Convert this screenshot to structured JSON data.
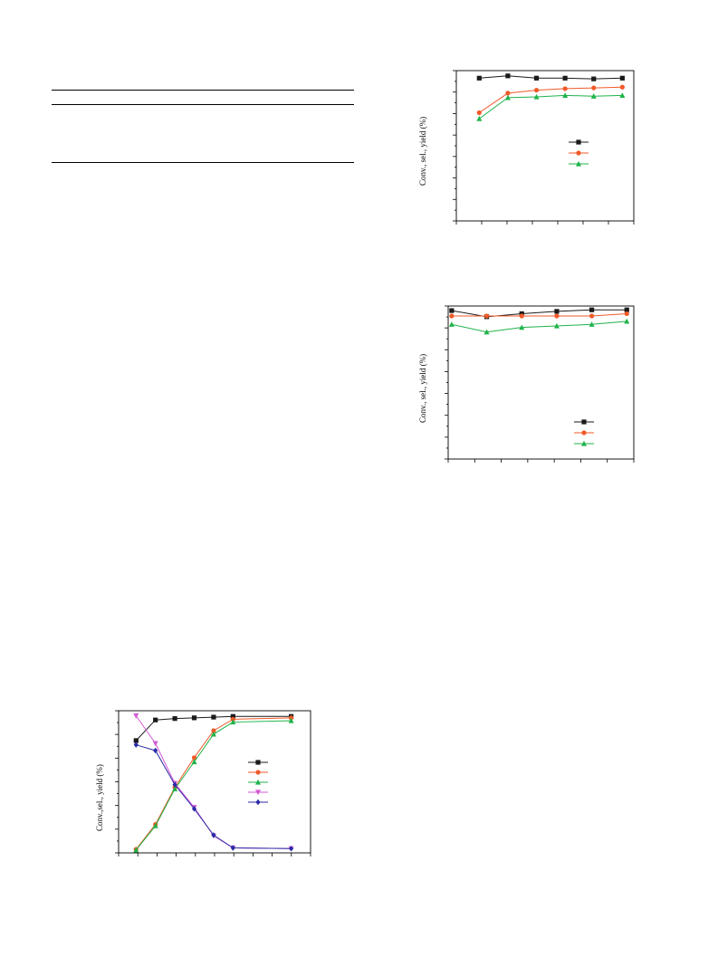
{
  "colors": {
    "black": "#1a1a1a",
    "red": "#f05a28",
    "green": "#1fb34a",
    "magenta": "#d458d4",
    "blue": "#2b2ba6"
  },
  "chart_data": [
    {
      "type": "line",
      "id": "top-right",
      "ylabel": "Conv., sel., yield (%)",
      "x": [
        1,
        2,
        3,
        4,
        5,
        6
      ],
      "xlim": [
        0.2,
        6.4
      ],
      "ylim": [
        0,
        100
      ],
      "series": [
        {
          "color": "black",
          "marker": "square",
          "values": [
            95,
            96.5,
            95,
            95,
            94.5,
            95
          ]
        },
        {
          "color": "red",
          "marker": "circle",
          "values": [
            72,
            85,
            87,
            88,
            88.5,
            89
          ]
        },
        {
          "color": "green",
          "marker": "triangle-up",
          "values": [
            68,
            82,
            82.5,
            83.5,
            83,
            83.5
          ]
        }
      ],
      "legend": "right"
    },
    {
      "type": "line",
      "id": "mid-right",
      "ylabel": "Conv., sel., yield (%)",
      "x": [
        1,
        2,
        3,
        4,
        5,
        6
      ],
      "xlim": [
        0.9,
        6.2
      ],
      "ylim": [
        0,
        100
      ],
      "series": [
        {
          "color": "black",
          "marker": "square",
          "values": [
            97,
            93,
            95,
            96.5,
            97.5,
            97.5
          ]
        },
        {
          "color": "red",
          "marker": "circle",
          "values": [
            93.5,
            93.5,
            93.5,
            93.5,
            93.5,
            95
          ]
        },
        {
          "color": "green",
          "marker": "triangle-up",
          "values": [
            88,
            83,
            86,
            87,
            88,
            90
          ]
        }
      ],
      "legend": "bottom-right"
    },
    {
      "type": "line",
      "id": "bottom-left",
      "ylabel": "Conv.,sel., yield (%)",
      "x": [
        1,
        2,
        3,
        4,
        5,
        6,
        9
      ],
      "xlim": [
        0.1,
        10
      ],
      "ylim": [
        0,
        100
      ],
      "series": [
        {
          "color": "black",
          "marker": "square",
          "values": [
            79,
            93.5,
            94.5,
            95,
            95.5,
            96,
            96
          ]
        },
        {
          "color": "red",
          "marker": "circle",
          "values": [
            2.5,
            20,
            46,
            67,
            86,
            94,
            95
          ]
        },
        {
          "color": "green",
          "marker": "triangle-up",
          "values": [
            2,
            19,
            45,
            64,
            83.5,
            92,
            93
          ]
        },
        {
          "color": "magenta",
          "marker": "triangle-down",
          "values": [
            96.5,
            77,
            49,
            32,
            12,
            3.5,
            3
          ]
        },
        {
          "color": "blue",
          "marker": "diamond",
          "values": [
            76,
            72,
            48,
            31,
            12.5,
            3.5,
            3
          ]
        }
      ],
      "legend": "right"
    }
  ]
}
